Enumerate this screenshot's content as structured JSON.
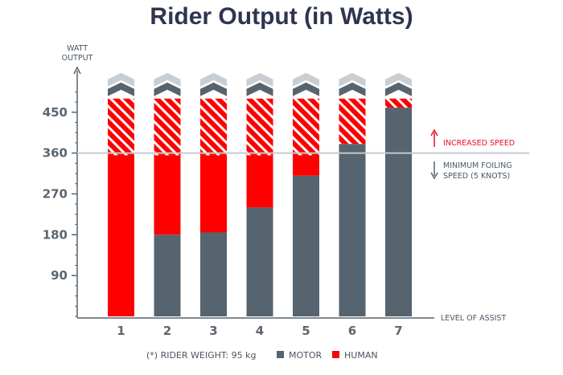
{
  "title": "Rider Output (in Watts)",
  "chart_data": {
    "type": "bar",
    "stacked": true,
    "categories": [
      "1",
      "2",
      "3",
      "4",
      "5",
      "6",
      "7"
    ],
    "series": [
      {
        "name": "MOTOR",
        "color": "#56646f",
        "values": [
          0,
          180,
          185,
          240,
          310,
          380,
          460
        ]
      },
      {
        "name": "HUMAN",
        "color": "#ff0000",
        "values": [
          355,
          175,
          170,
          115,
          45,
          0,
          0
        ]
      }
    ],
    "hatched_top": [
      480,
      480,
      480,
      480,
      480,
      480,
      480
    ],
    "ylabel": "WATT OUTPUT",
    "xlabel": "LEVEL OF ASSIST",
    "yticks": [
      90,
      180,
      270,
      360,
      450
    ],
    "ylim": [
      0,
      540
    ],
    "threshold": {
      "value": 360,
      "label_above": "INCREASED SPEED",
      "label_below": "MINIMUM FOILING SPEED (5 KNOTS)"
    },
    "note": "(*) RIDER WEIGHT: 95 kg",
    "legend": [
      "MOTOR",
      "HUMAN"
    ]
  },
  "colors": {
    "motor": "#56646f",
    "human": "#ff0000",
    "chevron_dark": "#56646f",
    "chevron_light": "#c9ced3",
    "accent_red": "#e8102a",
    "axis": "#56646f",
    "title": "#2f3450"
  }
}
